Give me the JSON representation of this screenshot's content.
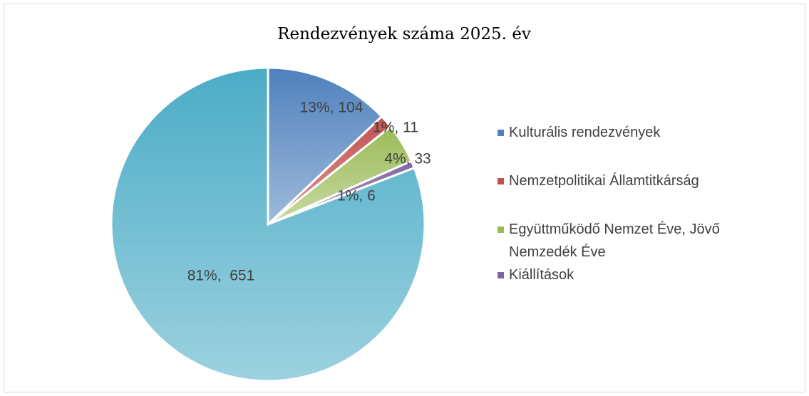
{
  "chart_data": {
    "type": "pie",
    "title": "Rendezvények száma 2025. év",
    "categories": [
      "Kulturális rendezvények",
      "Nemzetpolitikai Államtitkárság",
      "Együttműködő Nemzet Éve, Jövő Nemzedék Éve",
      "Kiállítások",
      null
    ],
    "values": [
      104,
      11,
      33,
      6,
      651
    ],
    "value_labels": [
      "13%, 104",
      "1%, 11",
      "4%, 33",
      "1%, 6",
      "81%,  651"
    ],
    "colors": [
      "#4f81bd",
      "#c0504d",
      "#9bbb59",
      "#8064a2",
      "#4bacc6"
    ],
    "legend": "right"
  }
}
